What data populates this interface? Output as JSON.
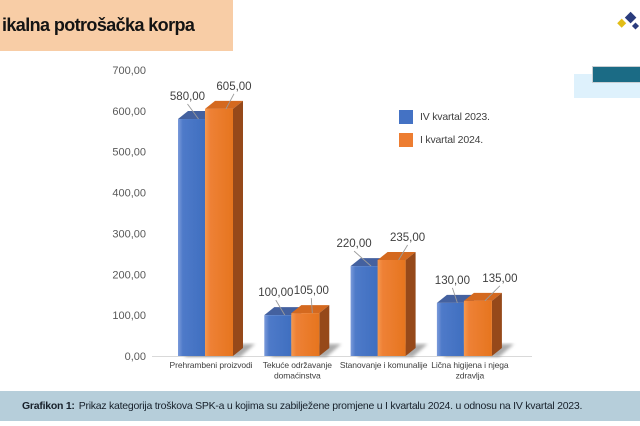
{
  "title": {
    "text": "ikalna potrošačka korpa",
    "bg": "#f8cda6"
  },
  "decor": {
    "teal_bar_color": "#1b6b85",
    "lightblue_bar_color": "#def1fc",
    "logo_diamond_colors": [
      "#2a3c7d",
      "#e2bd17",
      "#2a3c7d"
    ]
  },
  "legend": [
    {
      "label": "IV kvartal 2023.",
      "color": "#4472C4"
    },
    {
      "label": "I kvartal 2024.",
      "color": "#ED7D31"
    }
  ],
  "caption": {
    "prefix": "Grafikon 1:",
    "text": "Prikaz kategorija troškova SPK-a u kojima su zabilježene promjene u I kvartalu 2024. u odnosu na IV kvartal 2023.",
    "bg": "#b6ceda"
  },
  "chart_data": {
    "type": "bar",
    "style": "3d-column",
    "categories": [
      "Prehrambeni proizvodi",
      "Tekuće održavanje domaćinstva",
      "Stanovanje i komunalije",
      "Lična higijena i njega zdravlja"
    ],
    "series": [
      {
        "name": "IV kvartal 2023.",
        "color": "#4472C4",
        "top_color": "#44619f",
        "side_color": "#2f4f8f",
        "values": [
          580,
          100,
          220,
          130
        ]
      },
      {
        "name": "I kvartal 2024.",
        "color": "#ED7D31",
        "top_color": "#d4691f",
        "side_color": "#96491a",
        "values": [
          605,
          105,
          235,
          135
        ]
      }
    ],
    "value_labels": [
      [
        "580,00",
        "100,00",
        "220,00",
        "130,00"
      ],
      [
        "605,00",
        "105,00",
        "235,00",
        "135,00"
      ]
    ],
    "ylim": [
      0,
      700
    ],
    "ytick_step": 100,
    "ytick_labels": [
      "0,00",
      "100,00",
      "200,00",
      "300,00",
      "400,00",
      "500,00",
      "600,00",
      "700,00"
    ],
    "grid": false,
    "legend_position": "right-top",
    "title": "",
    "xlabel": "",
    "ylabel": ""
  }
}
